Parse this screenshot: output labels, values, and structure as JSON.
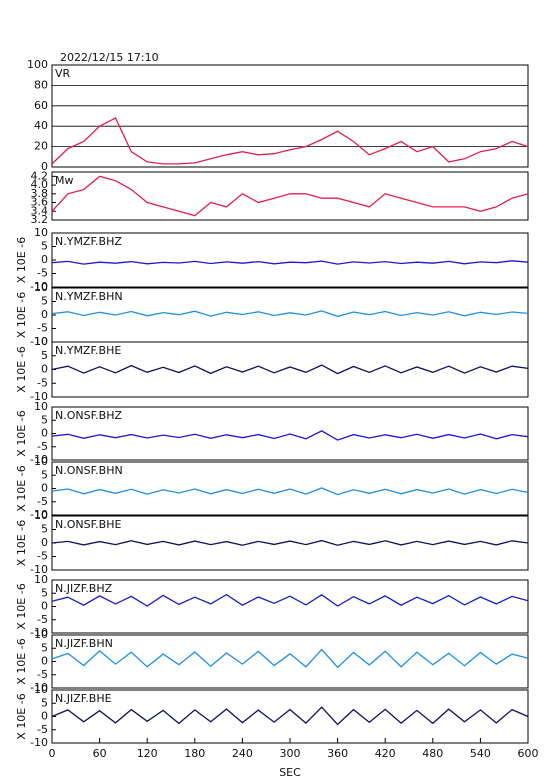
{
  "chart_data": [
    {
      "type": "line",
      "title": "2022/12/15 17:10",
      "label": "VR",
      "color": "#e0204a",
      "grid": true,
      "xlim": [
        0,
        600
      ],
      "ylim": [
        0,
        100
      ],
      "yticks": [
        0,
        20,
        40,
        60,
        80,
        100
      ],
      "x": [
        0,
        20,
        40,
        60,
        80,
        100,
        120,
        140,
        160,
        180,
        200,
        220,
        240,
        260,
        280,
        300,
        320,
        340,
        360,
        380,
        400,
        420,
        440,
        460,
        480,
        500,
        520,
        540,
        560,
        580,
        600
      ],
      "values": [
        3,
        18,
        25,
        40,
        48,
        15,
        5,
        3,
        3,
        4,
        8,
        12,
        15,
        12,
        13,
        17,
        20,
        27,
        35,
        25,
        12,
        18,
        25,
        15,
        20,
        5,
        8,
        15,
        18,
        25,
        20
      ]
    },
    {
      "type": "line",
      "label": "Mw",
      "color": "#e0204a",
      "xlim": [
        0,
        600
      ],
      "ylim": [
        3.2,
        4.3
      ],
      "yticks": [
        3.2,
        3.4,
        3.6,
        3.8,
        {
          "value": 4,
          "label": "4.0"
        },
        4.2
      ],
      "x": [
        0,
        20,
        40,
        60,
        80,
        100,
        120,
        140,
        160,
        180,
        200,
        220,
        240,
        260,
        280,
        300,
        320,
        340,
        360,
        380,
        400,
        420,
        440,
        460,
        480,
        500,
        520,
        540,
        560,
        580,
        600
      ],
      "values": [
        3.4,
        3.8,
        3.9,
        4.2,
        4.1,
        3.9,
        3.6,
        3.5,
        3.4,
        3.3,
        3.6,
        3.5,
        3.8,
        3.6,
        3.7,
        3.8,
        3.8,
        3.7,
        3.7,
        3.6,
        3.5,
        3.8,
        3.7,
        3.6,
        3.5,
        3.5,
        3.5,
        3.4,
        3.5,
        3.7,
        3.8
      ]
    },
    {
      "type": "line",
      "label": "N.YMZF.BHZ",
      "ylabel": "X 10E -6",
      "color": "#1a1acc",
      "xlim": [
        0,
        600
      ],
      "ylim": [
        -10,
        10
      ],
      "yticks": [
        -10,
        -5,
        0,
        5,
        10
      ],
      "x": [
        0,
        20,
        40,
        60,
        80,
        100,
        120,
        140,
        160,
        180,
        200,
        220,
        240,
        260,
        280,
        300,
        320,
        340,
        360,
        380,
        400,
        420,
        440,
        460,
        480,
        500,
        520,
        540,
        560,
        580,
        600
      ],
      "values": [
        -1,
        -0.5,
        -1.5,
        -0.8,
        -1.2,
        -0.6,
        -1.4,
        -0.9,
        -1.1,
        -0.5,
        -1.3,
        -0.7,
        -1.2,
        -0.6,
        -1.4,
        -0.8,
        -1,
        -0.4,
        -1.5,
        -0.7,
        -1.1,
        -0.6,
        -1.3,
        -0.8,
        -1.2,
        -0.5,
        -1.4,
        -0.7,
        -1,
        -0.3,
        -0.8
      ]
    },
    {
      "type": "line",
      "label": "N.YMZF.BHN",
      "ylabel": "X 10E -6",
      "color": "#1e90e0",
      "xlim": [
        0,
        600
      ],
      "ylim": [
        -10,
        10
      ],
      "yticks": [
        -10,
        -5,
        0,
        5,
        10
      ],
      "x": [
        0,
        20,
        40,
        60,
        80,
        100,
        120,
        140,
        160,
        180,
        200,
        220,
        240,
        260,
        280,
        300,
        320,
        340,
        360,
        380,
        400,
        420,
        440,
        460,
        480,
        500,
        520,
        540,
        560,
        580,
        600
      ],
      "values": [
        0.5,
        1.2,
        -0.2,
        1,
        0,
        1.3,
        -0.3,
        0.9,
        0.1,
        1.4,
        -0.4,
        1,
        0.2,
        1.2,
        -0.2,
        0.8,
        0,
        1.5,
        -0.5,
        1.1,
        0.1,
        1.3,
        -0.2,
        0.9,
        0,
        1.2,
        -0.3,
        1,
        0.2,
        1.1,
        0.6
      ]
    },
    {
      "type": "line",
      "label": "N.YMZF.BHE",
      "ylabel": "X 10E -6",
      "color": "#101060",
      "xlim": [
        0,
        600
      ],
      "ylim": [
        -10,
        10
      ],
      "yticks": [
        -10,
        -5,
        0,
        5,
        10
      ],
      "x": [
        0,
        20,
        40,
        60,
        80,
        100,
        120,
        140,
        160,
        180,
        200,
        220,
        240,
        260,
        280,
        300,
        320,
        340,
        360,
        380,
        400,
        420,
        440,
        460,
        480,
        500,
        520,
        540,
        560,
        580,
        600
      ],
      "values": [
        0,
        1.2,
        -1.3,
        1,
        -1.2,
        1.4,
        -1,
        0.8,
        -1.1,
        1.3,
        -1.4,
        1,
        -0.9,
        1.2,
        -1.2,
        0.9,
        -1,
        1.6,
        -1.5,
        1.1,
        -1,
        1.3,
        -1.2,
        0.9,
        -1,
        1.2,
        -1.3,
        1,
        -0.9,
        1.2,
        0.4
      ]
    },
    {
      "type": "line",
      "label": "N.ONSF.BHZ",
      "ylabel": "X 10E -6",
      "color": "#1a1acc",
      "xlim": [
        0,
        600
      ],
      "ylim": [
        -10,
        10
      ],
      "yticks": [
        -10,
        -5,
        0,
        5,
        10
      ],
      "x": [
        0,
        20,
        40,
        60,
        80,
        100,
        120,
        140,
        160,
        180,
        200,
        220,
        240,
        260,
        280,
        300,
        320,
        340,
        360,
        380,
        400,
        420,
        440,
        460,
        480,
        500,
        520,
        540,
        560,
        580,
        600
      ],
      "values": [
        -1,
        -0.3,
        -1.8,
        -0.5,
        -1.6,
        -0.4,
        -1.7,
        -0.6,
        -1.5,
        -0.3,
        -1.8,
        -0.5,
        -1.6,
        -0.4,
        -1.9,
        -0.2,
        -2,
        1,
        -2.5,
        -0.4,
        -1.7,
        -0.5,
        -1.6,
        -0.3,
        -1.8,
        -0.4,
        -1.7,
        -0.2,
        -2,
        -0.4,
        -1.2
      ]
    },
    {
      "type": "line",
      "label": "N.ONSF.BHN",
      "ylabel": "X 10E -6",
      "color": "#1e90e0",
      "xlim": [
        0,
        600
      ],
      "ylim": [
        -10,
        10
      ],
      "yticks": [
        -10,
        -5,
        0,
        5,
        10
      ],
      "x": [
        0,
        20,
        40,
        60,
        80,
        100,
        120,
        140,
        160,
        180,
        200,
        220,
        240,
        260,
        280,
        300,
        320,
        340,
        360,
        380,
        400,
        420,
        440,
        460,
        480,
        500,
        520,
        540,
        560,
        580,
        600
      ],
      "values": [
        -1,
        -0.2,
        -2,
        -0.4,
        -1.8,
        -0.3,
        -2.1,
        -0.5,
        -1.7,
        -0.2,
        -2,
        -0.4,
        -1.9,
        -0.3,
        -1.8,
        -0.2,
        -2.1,
        0.2,
        -2.3,
        -0.5,
        -1.8,
        -0.3,
        -2,
        -0.4,
        -1.7,
        -0.2,
        -2.1,
        -0.4,
        -1.9,
        -0.3,
        -1.5
      ]
    },
    {
      "type": "line",
      "label": "N.ONSF.BHE",
      "ylabel": "X 10E -6",
      "color": "#101060",
      "xlim": [
        0,
        600
      ],
      "ylim": [
        -10,
        10
      ],
      "yticks": [
        -10,
        -5,
        0,
        5,
        10
      ],
      "x": [
        0,
        20,
        40,
        60,
        80,
        100,
        120,
        140,
        160,
        180,
        200,
        220,
        240,
        260,
        280,
        300,
        320,
        340,
        360,
        380,
        400,
        420,
        440,
        460,
        480,
        500,
        520,
        540,
        560,
        580,
        600
      ],
      "values": [
        0,
        0.6,
        -0.7,
        0.5,
        -0.6,
        0.8,
        -0.5,
        0.6,
        -0.7,
        0.7,
        -0.6,
        0.5,
        -0.8,
        0.6,
        -0.5,
        0.7,
        -0.6,
        0.9,
        -0.8,
        0.6,
        -0.5,
        0.8,
        -0.7,
        0.6,
        -0.6,
        0.7,
        -0.5,
        0.6,
        -0.7,
        0.8,
        0
      ]
    },
    {
      "type": "line",
      "label": "N.JIZF.BHZ",
      "ylabel": "X 10E -6",
      "color": "#1a1acc",
      "xlim": [
        0,
        600
      ],
      "ylim": [
        -10,
        10
      ],
      "yticks": [
        -10,
        -5,
        0,
        5,
        10
      ],
      "x": [
        0,
        20,
        40,
        60,
        80,
        100,
        120,
        140,
        160,
        180,
        200,
        220,
        240,
        260,
        280,
        300,
        320,
        340,
        360,
        380,
        400,
        420,
        440,
        460,
        480,
        500,
        520,
        540,
        560,
        580,
        600
      ],
      "values": [
        2,
        3.5,
        0.5,
        4,
        1,
        3.8,
        0.2,
        4.2,
        0.8,
        3.5,
        1,
        4.5,
        0.5,
        3.6,
        1.2,
        3.9,
        0.6,
        4.4,
        0.2,
        3.7,
        1,
        4,
        0.5,
        3.5,
        1.1,
        4.1,
        0.6,
        3.6,
        1,
        3.8,
        2.2
      ]
    },
    {
      "type": "line",
      "label": "N.JIZF.BHN",
      "ylabel": "X 10E -6",
      "color": "#1e90e0",
      "xlim": [
        0,
        600
      ],
      "ylim": [
        -10,
        10
      ],
      "yticks": [
        -10,
        -5,
        0,
        5,
        10
      ],
      "x": [
        0,
        20,
        40,
        60,
        80,
        100,
        120,
        140,
        160,
        180,
        200,
        220,
        240,
        260,
        280,
        300,
        320,
        340,
        360,
        380,
        400,
        420,
        440,
        460,
        480,
        500,
        520,
        540,
        560,
        580,
        600
      ],
      "values": [
        1,
        3,
        -1.5,
        4,
        -1,
        3.5,
        -2,
        2.8,
        -1.2,
        3.6,
        -1.8,
        3.2,
        -1,
        3.8,
        -1.5,
        2.9,
        -2,
        4.5,
        -2.2,
        3.4,
        -1.3,
        3.9,
        -2,
        3.5,
        -1.2,
        3.1,
        -1.6,
        3.4,
        -1,
        2.8,
        1.2
      ]
    },
    {
      "type": "line",
      "label": "N.JIZF.BHE",
      "ylabel": "X 10E -6",
      "color": "#101060",
      "xlim": [
        0,
        600
      ],
      "ylim": [
        -10,
        10
      ],
      "yticks": [
        -10,
        -5,
        0,
        5,
        10
      ],
      "xlabel": "SEC",
      "xticks": [
        0,
        60,
        120,
        180,
        240,
        300,
        360,
        420,
        480,
        540,
        600
      ],
      "x": [
        0,
        20,
        40,
        60,
        80,
        100,
        120,
        140,
        160,
        180,
        200,
        220,
        240,
        260,
        280,
        300,
        320,
        340,
        360,
        380,
        400,
        420,
        440,
        460,
        480,
        500,
        520,
        540,
        560,
        580,
        600
      ],
      "values": [
        0,
        2.5,
        -2,
        2.2,
        -2.4,
        2.6,
        -1.8,
        2.3,
        -2.6,
        2.5,
        -2,
        2.8,
        -2.3,
        2.4,
        -2.1,
        2.6,
        -2.5,
        3.5,
        -3,
        2.6,
        -2.2,
        2.7,
        -2.5,
        2.3,
        -2.6,
        2.8,
        -2,
        2.5,
        -2.4,
        2.6,
        0
      ]
    }
  ]
}
